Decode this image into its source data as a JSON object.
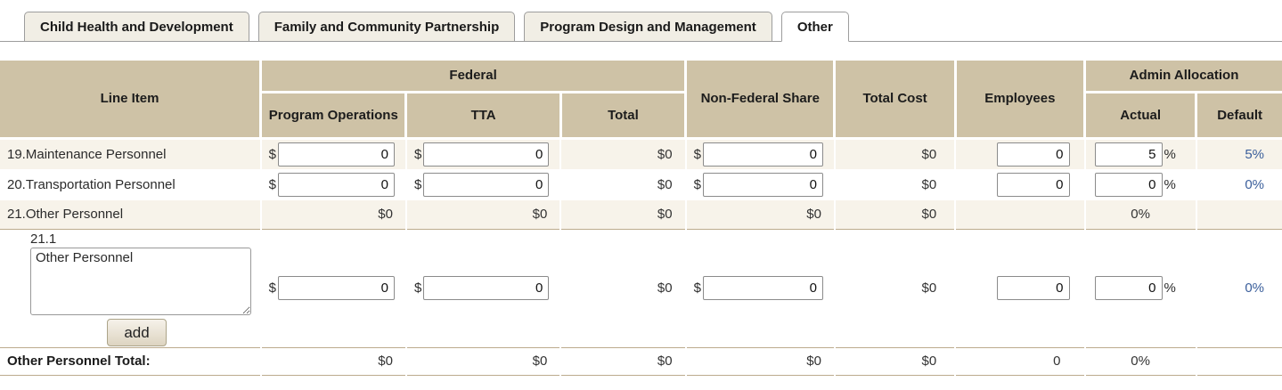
{
  "tabs": [
    {
      "label": "Child Health and Development",
      "active": false
    },
    {
      "label": "Family and Community Partnership",
      "active": false
    },
    {
      "label": "Program Design and Management",
      "active": false
    },
    {
      "label": "Other",
      "active": true
    }
  ],
  "symbols": {
    "dollar": "$",
    "percent": "%"
  },
  "headers": {
    "line_item": "Line Item",
    "federal": "Federal",
    "program_operations": "Program Operations",
    "tta": "TTA",
    "total": "Total",
    "non_federal_share": "Non-Federal Share",
    "total_cost": "Total Cost",
    "employees": "Employees",
    "admin_allocation": "Admin Allocation",
    "actual": "Actual",
    "default": "Default"
  },
  "rows": {
    "r19": {
      "label": "19.Maintenance Personnel",
      "program_operations_value": "0",
      "tta_value": "0",
      "federal_total": "$0",
      "non_federal_value": "0",
      "total_cost": "$0",
      "employees_value": "0",
      "actual_value": "5",
      "default": "5%"
    },
    "r20": {
      "label": "20.Transportation Personnel",
      "program_operations_value": "0",
      "tta_value": "0",
      "federal_total": "$0",
      "non_federal_value": "0",
      "total_cost": "$0",
      "employees_value": "0",
      "actual_value": "0",
      "default": "0%"
    },
    "r21": {
      "label": "21.Other Personnel",
      "program_operations": "$0",
      "tta": "$0",
      "federal_total": "$0",
      "non_federal": "$0",
      "total_cost": "$0",
      "actual": "0%"
    },
    "r21_1": {
      "number": "21.1",
      "description": "Other Personnel",
      "add_button_label": "add",
      "program_operations_value": "0",
      "tta_value": "0",
      "federal_total": "$0",
      "non_federal_value": "0",
      "total_cost": "$0",
      "employees_value": "0",
      "actual_value": "0",
      "default": "0%"
    },
    "total": {
      "label": "Other Personnel Total:",
      "program_operations": "$0",
      "tta": "$0",
      "federal_total": "$0",
      "non_federal": "$0",
      "total_cost": "$0",
      "employees": "0",
      "actual": "0%"
    }
  }
}
